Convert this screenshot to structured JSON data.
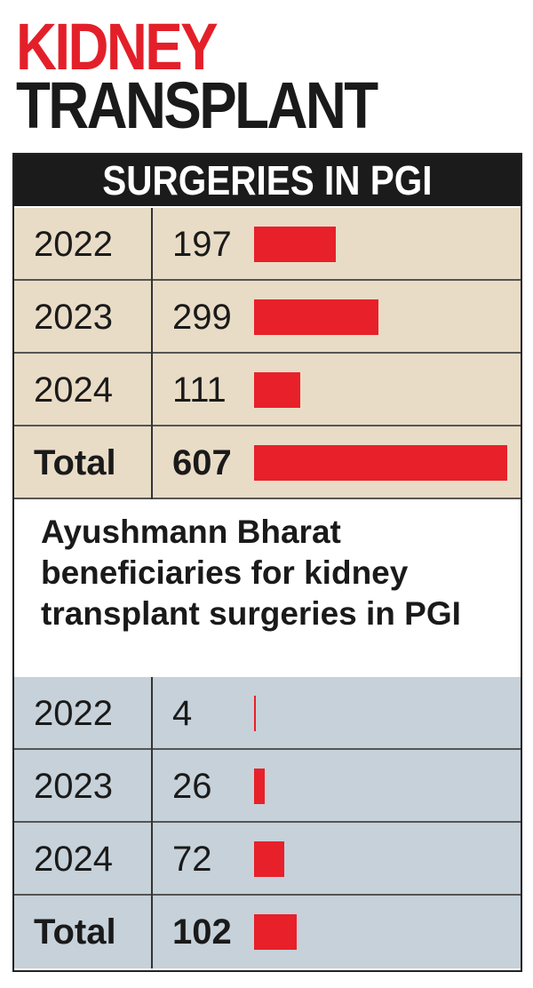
{
  "title": [
    "KIDNEY",
    "TRANSPLANT"
  ],
  "sections": [
    {
      "heading": "SURGERIES IN PGI",
      "rows": [
        {
          "label": "2022",
          "value": 197
        },
        {
          "label": "2023",
          "value": 299
        },
        {
          "label": "2024",
          "value": 111
        },
        {
          "label": "Total",
          "value": 607
        }
      ]
    },
    {
      "heading": "Ayushmann Bharat beneficiaries for kidney transplant surgeries in PGI",
      "rows": [
        {
          "label": "2022",
          "value": 4
        },
        {
          "label": "2023",
          "value": 26
        },
        {
          "label": "2024",
          "value": 72
        },
        {
          "label": "Total",
          "value": 102
        }
      ]
    }
  ]
}
